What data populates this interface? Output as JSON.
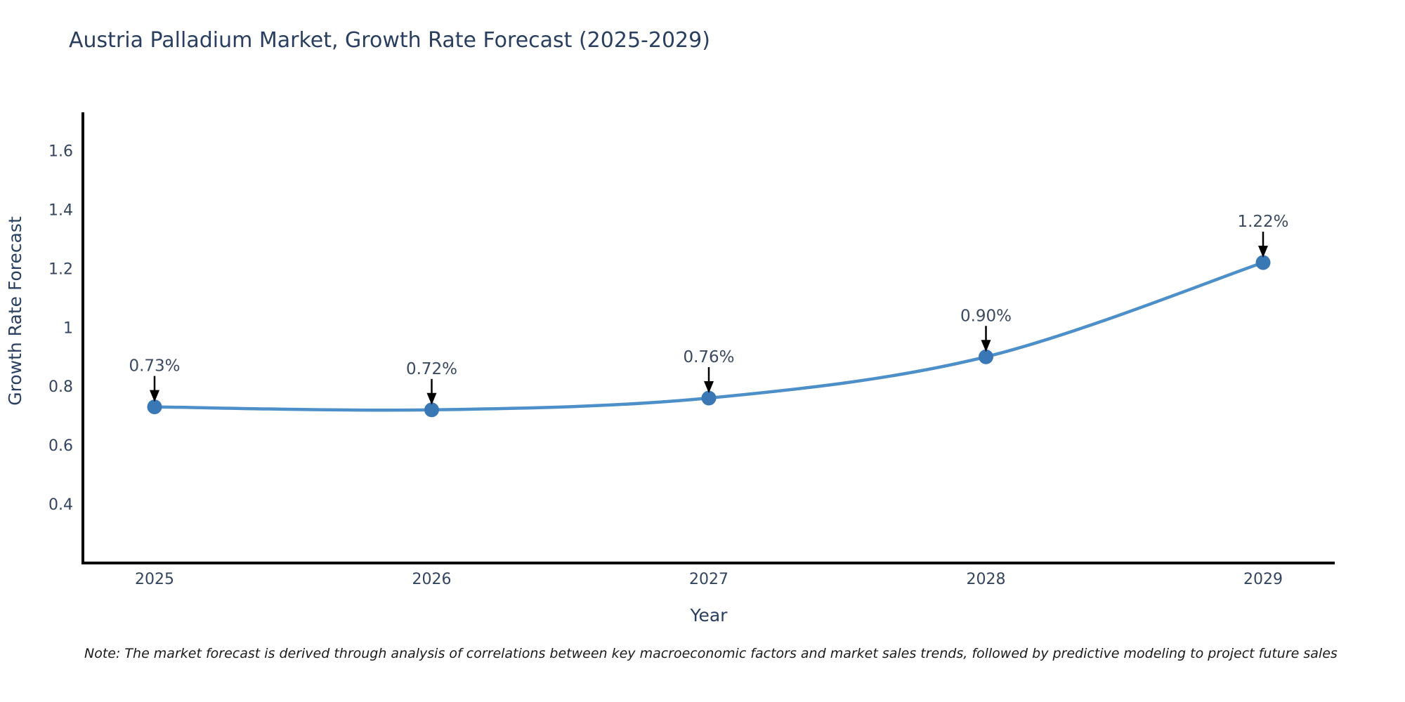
{
  "note": "Note: The market forecast is derived through analysis of correlations between key macroeconomic factors and market sales trends, followed by predictive modeling to project future sales",
  "chart_data": {
    "type": "line",
    "title": "Austria Palladium Market, Growth Rate Forecast (2025-2029)",
    "xlabel": "Year",
    "ylabel": "Growth Rate Forecast",
    "categories": [
      2025,
      2026,
      2027,
      2028,
      2029
    ],
    "values": [
      0.73,
      0.72,
      0.76,
      0.9,
      1.22
    ],
    "point_labels": [
      "0.73%",
      "0.72%",
      "0.76%",
      "0.90%",
      "1.22%"
    ],
    "yticks": [
      0.4,
      0.6,
      0.8,
      1,
      1.2,
      1.4,
      1.6
    ],
    "ylim": [
      0.2,
      1.73
    ],
    "line_shape": "spline",
    "grid": false,
    "legend_position": "none",
    "colors": {
      "line": "#4d8fc9",
      "marker": "#3a77b5",
      "axis_line": "#000000",
      "tick_label": "#34455e",
      "axis_title": "#2a3f5f",
      "title": "#2a3f5f",
      "annotation_text": "#3b4a5f",
      "annotation_arrow": "#000000",
      "background": "#ffffff"
    }
  }
}
